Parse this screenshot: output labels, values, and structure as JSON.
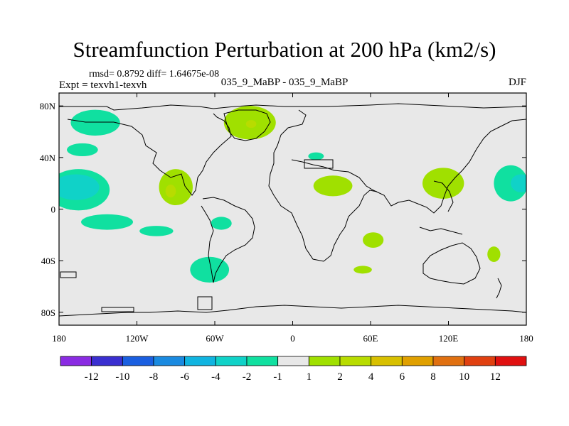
{
  "chart_data": {
    "type": "heatmap",
    "title": "Streamfunction Perturbation at 200 hPa (km2/s)",
    "stats_text": "rmsd= 0.8792 diff= 1.64675e-08",
    "experiment_text": "Expt = texvh1-texvh",
    "case_text": "035_9_MaBP - 035_9_MaBP",
    "season": "DJF",
    "xlim": [
      -180,
      180
    ],
    "ylim": [
      -90,
      90
    ],
    "x_ticks": [
      {
        "value": -180,
        "label": "180"
      },
      {
        "value": -120,
        "label": "120W"
      },
      {
        "value": -60,
        "label": "60W"
      },
      {
        "value": 0,
        "label": "0"
      },
      {
        "value": 60,
        "label": "60E"
      },
      {
        "value": 120,
        "label": "120E"
      },
      {
        "value": 180,
        "label": "180"
      }
    ],
    "y_ticks": [
      {
        "value": 80,
        "label": "80N"
      },
      {
        "value": 40,
        "label": "40N"
      },
      {
        "value": 0,
        "label": "0"
      },
      {
        "value": -40,
        "label": "40S"
      },
      {
        "value": -80,
        "label": "80S"
      }
    ],
    "colorbar": {
      "colors": [
        "#8a2be2",
        "#3a2fd0",
        "#1a5fe0",
        "#1a8ae0",
        "#10b4e0",
        "#10d2c8",
        "#10e0a0",
        "#e8e8e8",
        "#a0e000",
        "#b8dc00",
        "#d8c000",
        "#e0a000",
        "#e07010",
        "#e04010",
        "#e01010"
      ],
      "labels": [
        "-12",
        "-10",
        "-8",
        "-6",
        "-4",
        "-2",
        "-1",
        "1",
        "2",
        "4",
        "6",
        "8",
        "10",
        "12"
      ]
    },
    "anomalies": [
      {
        "lon": -152,
        "lat": 67,
        "rlon": 19,
        "rlat": 10,
        "level": -1
      },
      {
        "lon": -162,
        "lat": 46,
        "rlon": 12,
        "rlat": 5,
        "level": -1
      },
      {
        "lon": -165,
        "lat": 15,
        "rlon": 24,
        "rlat": 16,
        "level": -1
      },
      {
        "lon": -167,
        "lat": 17,
        "rlon": 18,
        "rlat": 10,
        "level": -2
      },
      {
        "lon": -143,
        "lat": -10,
        "rlon": 20,
        "rlat": 6,
        "level": -1
      },
      {
        "lon": -105,
        "lat": -17,
        "rlon": 13,
        "rlat": 4,
        "level": -1
      },
      {
        "lon": -90,
        "lat": 17,
        "rlon": 13,
        "rlat": 14,
        "level": 1
      },
      {
        "lon": -94,
        "lat": 14,
        "rlon": 4,
        "rlat": 5,
        "level": 2
      },
      {
        "lon": -55,
        "lat": -11,
        "rlon": 8,
        "rlat": 5,
        "level": -1
      },
      {
        "lon": -64,
        "lat": -47,
        "rlon": 15,
        "rlat": 10,
        "level": -1
      },
      {
        "lon": -33,
        "lat": 67,
        "rlon": 20,
        "rlat": 13,
        "level": 1
      },
      {
        "lon": -32,
        "lat": 66,
        "rlon": 4,
        "rlat": 3,
        "level": 2
      },
      {
        "lon": 18,
        "lat": 41,
        "rlon": 6,
        "rlat": 3,
        "level": -1
      },
      {
        "lon": 31,
        "lat": 18,
        "rlon": 15,
        "rlat": 8,
        "level": 1
      },
      {
        "lon": 62,
        "lat": -24,
        "rlon": 8,
        "rlat": 6,
        "level": 1
      },
      {
        "lon": 54,
        "lat": -47,
        "rlon": 7,
        "rlat": 3,
        "level": 1
      },
      {
        "lon": 116,
        "lat": 20,
        "rlon": 16,
        "rlat": 12,
        "level": 1
      },
      {
        "lon": 168,
        "lat": 20,
        "rlon": 13,
        "rlat": 14,
        "level": -1
      },
      {
        "lon": 176,
        "lat": 20,
        "rlon": 8,
        "rlat": 7,
        "level": -2
      },
      {
        "lon": 155,
        "lat": -35,
        "rlon": 5,
        "rlat": 6,
        "level": 1
      }
    ]
  }
}
